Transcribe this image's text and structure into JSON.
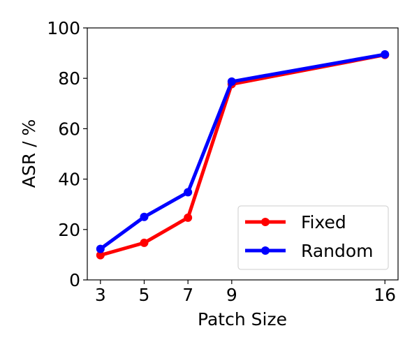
{
  "chart_data": {
    "type": "line",
    "title": "",
    "xlabel": "Patch Size",
    "ylabel": "ASR / %",
    "x": [
      3,
      5,
      7,
      9,
      16
    ],
    "x_ticks": [
      "3",
      "5",
      "7",
      "9",
      "16"
    ],
    "y_ticks": [
      "0",
      "20",
      "40",
      "60",
      "80",
      "100"
    ],
    "xlim": [
      2.4,
      16.6
    ],
    "ylim": [
      0,
      100
    ],
    "grid": false,
    "legend_position": "lower-right",
    "series": [
      {
        "name": "Fixed",
        "color": "#ff0000",
        "values": [
          9.8,
          14.7,
          24.7,
          77.7,
          89.3
        ]
      },
      {
        "name": "Random",
        "color": "#0000ff",
        "values": [
          12.3,
          25.0,
          34.8,
          78.7,
          89.5
        ]
      }
    ]
  }
}
